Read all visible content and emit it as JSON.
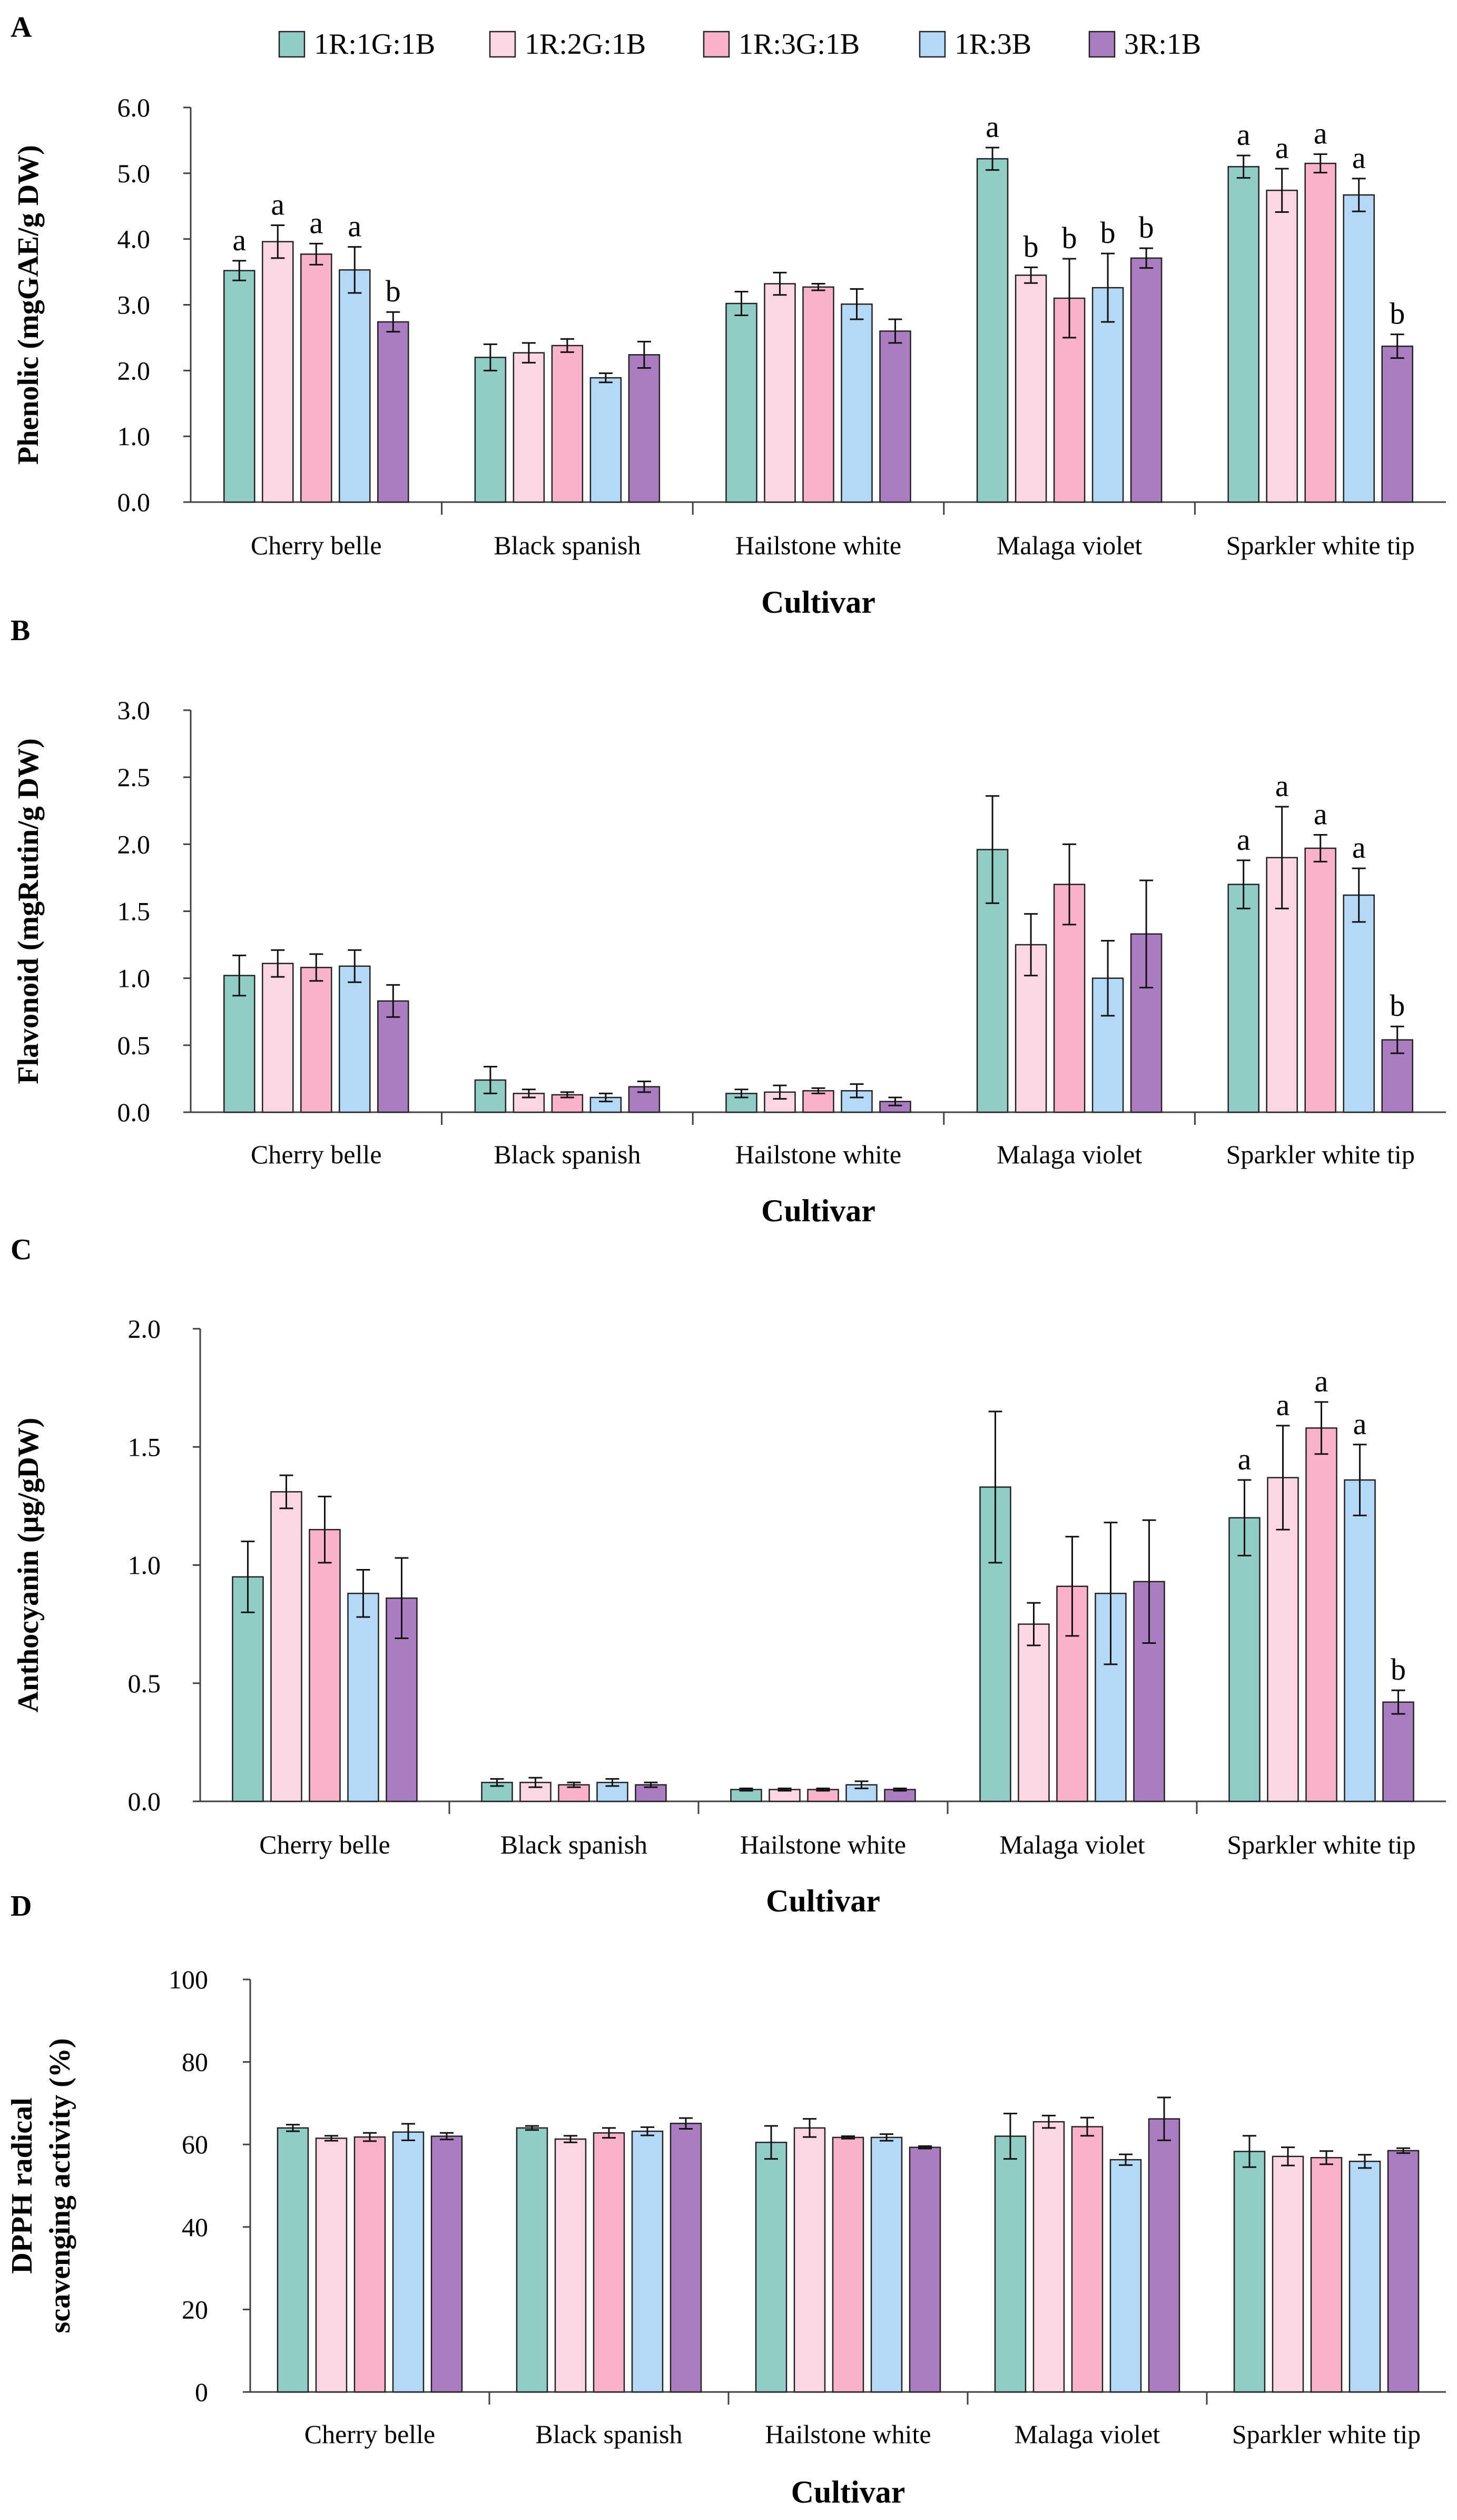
{
  "legend": [
    "1R:1G:1B",
    "1R:2G:1B",
    "1R:3G:1B",
    "1R:3B",
    "3R:1B"
  ],
  "colors": {
    "series": [
      "#91cdc6",
      "#fcd6e5",
      "#f8b2cc",
      "#b3d9f6",
      "#ab7dc0"
    ],
    "edge": "#222222",
    "axis": "#404040"
  },
  "chart_data": [
    {
      "type": "bar",
      "panel_label": "A",
      "title": "",
      "xlabel": "Cultivar",
      "ylabel": "Phenolic (mgGAE/g DW)",
      "categories": [
        "Cherry belle",
        "Black spanish",
        "Hailstone white",
        "Malaga violet",
        "Sparkler white tip"
      ],
      "ylim": [
        0,
        6
      ],
      "yticks": [
        "0.0",
        "1.0",
        "2.0",
        "3.0",
        "4.0",
        "5.0",
        "6.0"
      ],
      "series": [
        {
          "name": "1R:1G:1B",
          "values": [
            3.52,
            2.2,
            3.02,
            5.22,
            5.1
          ],
          "errors": [
            0.15,
            0.2,
            0.18,
            0.17,
            0.17
          ]
        },
        {
          "name": "1R:2G:1B",
          "values": [
            3.96,
            2.27,
            3.32,
            3.45,
            4.74
          ],
          "errors": [
            0.25,
            0.15,
            0.17,
            0.12,
            0.33
          ]
        },
        {
          "name": "1R:3G:1B",
          "values": [
            3.77,
            2.38,
            3.27,
            3.1,
            5.15
          ],
          "errors": [
            0.16,
            0.1,
            0.05,
            0.6,
            0.14
          ]
        },
        {
          "name": "1R:3B",
          "values": [
            3.53,
            1.89,
            3.01,
            3.26,
            4.67
          ],
          "errors": [
            0.35,
            0.07,
            0.23,
            0.52,
            0.25
          ]
        },
        {
          "name": "3R:1B",
          "values": [
            2.74,
            2.24,
            2.6,
            3.71,
            2.37
          ],
          "errors": [
            0.15,
            0.2,
            0.18,
            0.15,
            0.18
          ]
        }
      ],
      "annotations": [
        [
          "a",
          "",
          "",
          "a",
          "a"
        ],
        [
          "a",
          "",
          "",
          "b",
          "a"
        ],
        [
          "a",
          "",
          "",
          "b",
          "a"
        ],
        [
          "a",
          "",
          "",
          "b",
          "a"
        ],
        [
          "b",
          "",
          "",
          "b",
          "b"
        ]
      ]
    },
    {
      "type": "bar",
      "panel_label": "B",
      "title": "",
      "xlabel": "Cultivar",
      "ylabel": "Flavonoid (mgRutin/g DW)",
      "categories": [
        "Cherry belle",
        "Black spanish",
        "Hailstone white",
        "Malaga violet",
        "Sparkler white tip"
      ],
      "ylim": [
        0,
        3
      ],
      "yticks": [
        "0.0",
        "0.5",
        "1.0",
        "1.5",
        "2.0",
        "2.5",
        "3.0"
      ],
      "series": [
        {
          "name": "1R:1G:1B",
          "values": [
            1.02,
            0.24,
            0.14,
            1.96,
            1.7
          ],
          "errors": [
            0.15,
            0.1,
            0.03,
            0.4,
            0.18
          ]
        },
        {
          "name": "1R:2G:1B",
          "values": [
            1.11,
            0.14,
            0.15,
            1.25,
            1.9
          ],
          "errors": [
            0.1,
            0.03,
            0.05,
            0.23,
            0.38
          ]
        },
        {
          "name": "1R:3G:1B",
          "values": [
            1.08,
            0.13,
            0.16,
            1.7,
            1.97
          ],
          "errors": [
            0.1,
            0.02,
            0.02,
            0.3,
            0.1
          ]
        },
        {
          "name": "1R:3B",
          "values": [
            1.09,
            0.11,
            0.16,
            1.0,
            1.62
          ],
          "errors": [
            0.12,
            0.03,
            0.05,
            0.28,
            0.2
          ]
        },
        {
          "name": "3R:1B",
          "values": [
            0.83,
            0.19,
            0.08,
            1.33,
            0.54
          ],
          "errors": [
            0.12,
            0.04,
            0.03,
            0.4,
            0.1
          ]
        }
      ],
      "annotations": [
        [
          "",
          "",
          "",
          "",
          "a"
        ],
        [
          "",
          "",
          "",
          "",
          "a"
        ],
        [
          "",
          "",
          "",
          "",
          "a"
        ],
        [
          "",
          "",
          "",
          "",
          "a"
        ],
        [
          "",
          "",
          "",
          "",
          "b"
        ]
      ]
    },
    {
      "type": "bar",
      "panel_label": "C",
      "title": "",
      "xlabel": "Cultivar",
      "ylabel": "Anthocyanin (µg/gDW)",
      "categories": [
        "Cherry belle",
        "Black spanish",
        "Hailstone white",
        "Malaga violet",
        "Sparkler white tip"
      ],
      "ylim": [
        0,
        2
      ],
      "yticks": [
        "0.0",
        "0.5",
        "1.0",
        "1.5",
        "2.0"
      ],
      "series": [
        {
          "name": "1R:1G:1B",
          "values": [
            0.95,
            0.08,
            0.05,
            1.33,
            1.2
          ],
          "errors": [
            0.15,
            0.015,
            0.005,
            0.32,
            0.16
          ]
        },
        {
          "name": "1R:2G:1B",
          "values": [
            1.31,
            0.08,
            0.05,
            0.75,
            1.37
          ],
          "errors": [
            0.07,
            0.02,
            0.005,
            0.09,
            0.22
          ]
        },
        {
          "name": "1R:3G:1B",
          "values": [
            1.15,
            0.07,
            0.05,
            0.91,
            1.58
          ],
          "errors": [
            0.14,
            0.01,
            0.005,
            0.21,
            0.11
          ]
        },
        {
          "name": "1R:3B",
          "values": [
            0.88,
            0.08,
            0.07,
            0.88,
            1.36
          ],
          "errors": [
            0.1,
            0.015,
            0.015,
            0.3,
            0.15
          ]
        },
        {
          "name": "3R:1B",
          "values": [
            0.86,
            0.07,
            0.05,
            0.93,
            0.42
          ],
          "errors": [
            0.17,
            0.01,
            0.005,
            0.26,
            0.05
          ]
        }
      ],
      "annotations": [
        [
          "",
          "",
          "",
          "",
          "a"
        ],
        [
          "",
          "",
          "",
          "",
          "a"
        ],
        [
          "",
          "",
          "",
          "",
          "a"
        ],
        [
          "",
          "",
          "",
          "",
          "a"
        ],
        [
          "",
          "",
          "",
          "",
          "b"
        ]
      ]
    },
    {
      "type": "bar",
      "panel_label": "D",
      "title": "",
      "xlabel": "Cultivar",
      "ylabel": [
        "DPPH radical",
        "scavenging activity (%)"
      ],
      "categories": [
        "Cherry belle",
        "Black spanish",
        "Hailstone white",
        "Malaga violet",
        "Sparkler white tip"
      ],
      "ylim": [
        0,
        100
      ],
      "yticks": [
        "0",
        "20",
        "40",
        "60",
        "80",
        "100"
      ],
      "series": [
        {
          "name": "1R:1G:1B",
          "values": [
            64,
            64,
            60.5,
            62,
            58.3
          ],
          "errors": [
            0.8,
            0.5,
            4,
            5.5,
            3.8
          ]
        },
        {
          "name": "1R:2G:1B",
          "values": [
            61.5,
            61.3,
            64,
            65.5,
            57.1
          ],
          "errors": [
            0.6,
            0.8,
            2.2,
            1.5,
            2.2
          ]
        },
        {
          "name": "1R:3G:1B",
          "values": [
            61.8,
            62.8,
            61.7,
            64.3,
            56.8
          ],
          "errors": [
            1,
            1.2,
            0.3,
            2.2,
            1.6
          ]
        },
        {
          "name": "1R:3B",
          "values": [
            63,
            63.2,
            61.7,
            56.3,
            55.9
          ],
          "errors": [
            2,
            1,
            0.8,
            1.3,
            1.6
          ]
        },
        {
          "name": "3R:1B",
          "values": [
            62,
            65.1,
            59.3,
            66.2,
            58.5
          ],
          "errors": [
            0.8,
            1.3,
            0.3,
            5.2,
            0.6
          ]
        }
      ],
      "annotations": [
        [
          "",
          "",
          "",
          "",
          ""
        ],
        [
          "",
          "",
          "",
          "",
          ""
        ],
        [
          "",
          "",
          "",
          "",
          ""
        ],
        [
          "",
          "",
          "",
          "",
          ""
        ],
        [
          "",
          "",
          "",
          "",
          ""
        ]
      ]
    }
  ]
}
